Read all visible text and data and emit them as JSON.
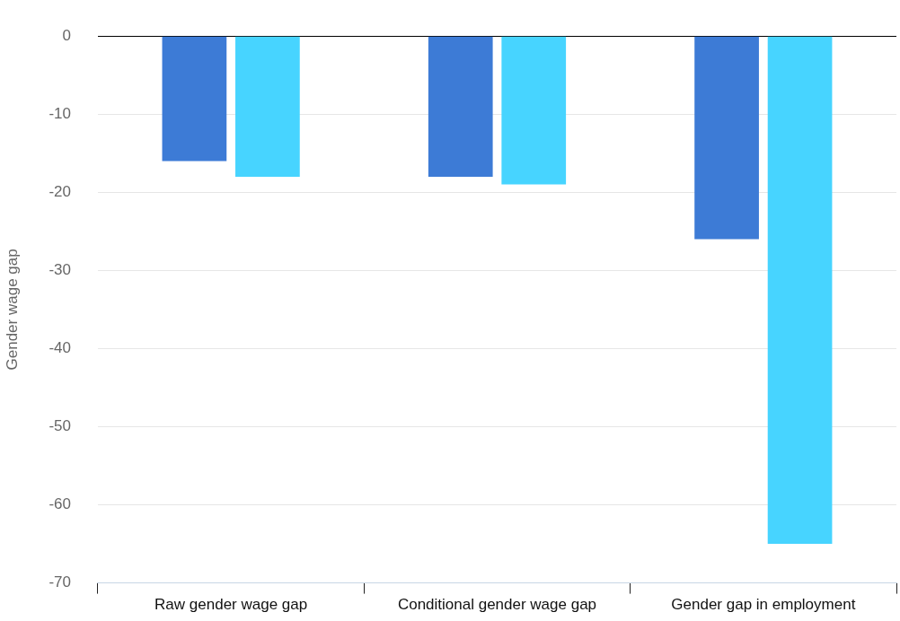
{
  "chart_data": {
    "type": "bar",
    "ylabel": "Gender wage gap",
    "categories": [
      "Raw gender wage gap",
      "Conditional gender wage gap",
      "Gender gap in employment"
    ],
    "series": [
      {
        "color": "#3d7bd6",
        "values": [
          -16,
          -18,
          -26
        ]
      },
      {
        "color": "#47d4ff",
        "values": [
          -18,
          -19,
          -65
        ]
      }
    ],
    "ylim": [
      -70,
      0
    ],
    "yticks": [
      -70,
      -60,
      -50,
      -40,
      -30,
      -20,
      -10,
      0
    ],
    "grid": "y",
    "legend": false
  }
}
